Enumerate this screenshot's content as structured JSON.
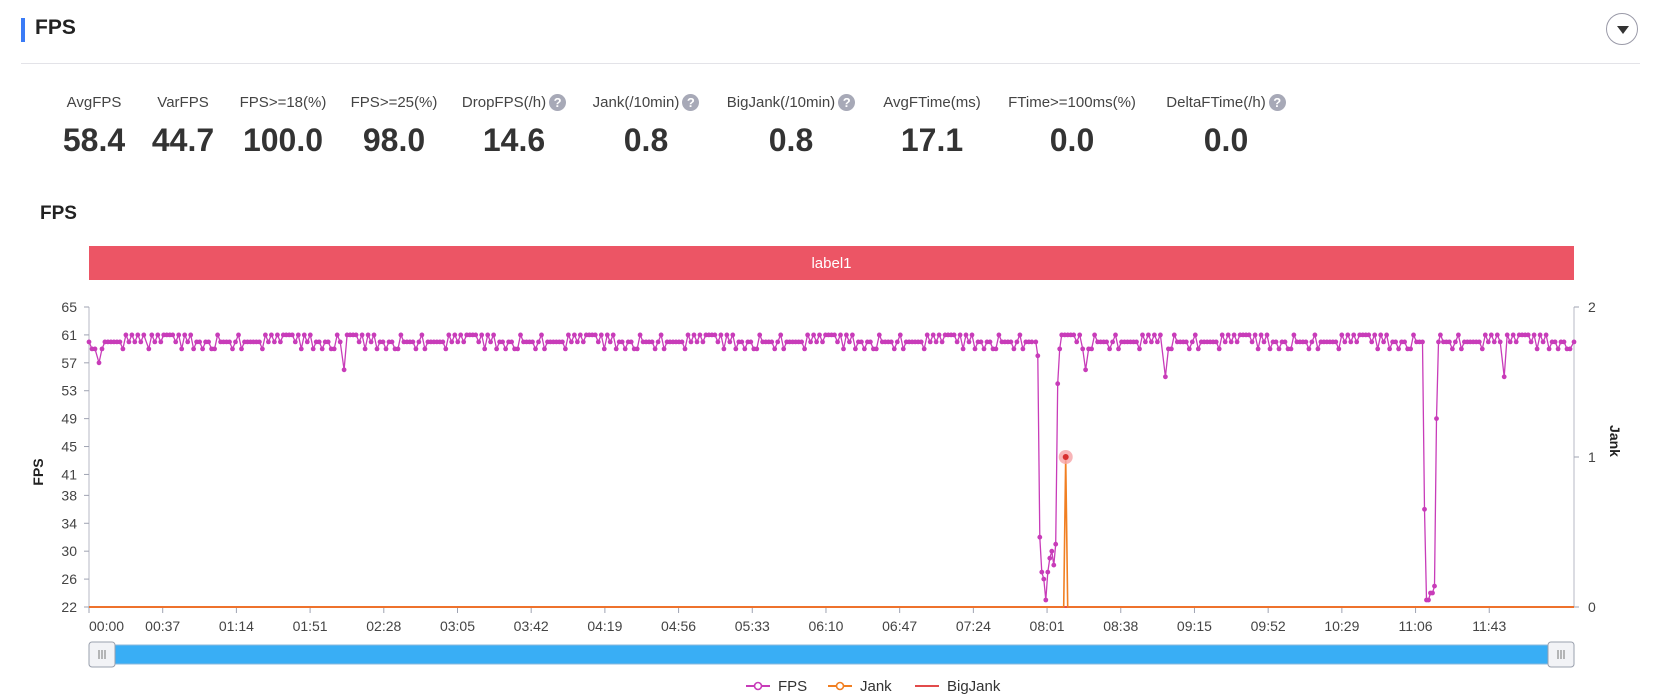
{
  "section": {
    "title": "FPS"
  },
  "metrics": [
    {
      "label": "AvgFPS",
      "value": "58.4",
      "help": false
    },
    {
      "label": "VarFPS",
      "value": "44.7",
      "help": false
    },
    {
      "label": "FPS>=18(%)",
      "value": "100.0",
      "help": false
    },
    {
      "label": "FPS>=25(%)",
      "value": "98.0",
      "help": false
    },
    {
      "label": "DropFPS(/h)",
      "value": "14.6",
      "help": true
    },
    {
      "label": "Jank(/10min)",
      "value": "0.8",
      "help": true
    },
    {
      "label": "BigJank(/10min)",
      "value": "0.8",
      "help": true
    },
    {
      "label": "AvgFTime(ms)",
      "value": "17.1",
      "help": false
    },
    {
      "label": "FTime>=100ms(%)",
      "value": "0.0",
      "help": false
    },
    {
      "label": "DeltaFTime(/h)",
      "value": "0.0",
      "help": true
    }
  ],
  "help_glyph": "?",
  "colors": {
    "accent": "#3a7bf6",
    "fps": "#c83cb9",
    "jank": "#f17f22",
    "bigjank": "#e24b4b",
    "label_band": "#ec5565",
    "slider": "#39aef5"
  },
  "chart_data": {
    "type": "line",
    "title": "FPS",
    "band_label": "label1",
    "y_left": {
      "label": "FPS",
      "ticks": [
        22,
        26,
        30,
        34,
        38,
        41,
        45,
        49,
        53,
        57,
        61,
        65
      ],
      "range": [
        22,
        65
      ]
    },
    "y_right": {
      "label": "Jank",
      "ticks": [
        0,
        1,
        2
      ],
      "range": [
        0,
        2
      ]
    },
    "x_ticks": [
      "00:00",
      "00:37",
      "01:14",
      "01:51",
      "02:28",
      "03:05",
      "03:42",
      "04:19",
      "04:56",
      "05:33",
      "06:10",
      "06:47",
      "07:24",
      "08:01",
      "08:38",
      "09:15",
      "09:52",
      "10:29",
      "11:06",
      "11:43"
    ],
    "x_range_seconds": [
      0,
      745
    ],
    "series": [
      {
        "name": "FPS",
        "axis": "left",
        "note": "Stays ~58-61 except two drops; values below are the notable points (seconds, fps)",
        "points": [
          [
            0,
            60
          ],
          [
            5,
            57
          ],
          [
            30,
            59
          ],
          [
            128,
            56
          ],
          [
            475,
            60
          ],
          [
            476,
            58
          ],
          [
            477,
            32
          ],
          [
            478,
            27
          ],
          [
            479,
            26
          ],
          [
            480,
            23
          ],
          [
            481,
            27
          ],
          [
            482,
            29
          ],
          [
            483,
            30
          ],
          [
            484,
            28
          ],
          [
            485,
            31
          ],
          [
            486,
            54
          ],
          [
            487,
            59
          ],
          [
            488,
            61
          ],
          [
            500,
            56
          ],
          [
            540,
            55
          ],
          [
            669,
            60
          ],
          [
            670,
            36
          ],
          [
            671,
            23
          ],
          [
            672,
            23
          ],
          [
            673,
            24
          ],
          [
            674,
            24
          ],
          [
            675,
            25
          ],
          [
            676,
            49
          ],
          [
            677,
            60
          ],
          [
            678,
            61
          ],
          [
            710,
            55
          ],
          [
            745,
            60
          ]
        ]
      },
      {
        "name": "Jank",
        "axis": "right",
        "points": [
          [
            0,
            0
          ],
          [
            489,
            0
          ],
          [
            490,
            1
          ],
          [
            491,
            0
          ],
          [
            745,
            0
          ]
        ]
      },
      {
        "name": "BigJank",
        "axis": "right",
        "points": [
          [
            0,
            0
          ],
          [
            745,
            0
          ]
        ]
      }
    ],
    "legend": [
      "FPS",
      "Jank",
      "BigJank"
    ],
    "legend_position": "bottom-center"
  }
}
